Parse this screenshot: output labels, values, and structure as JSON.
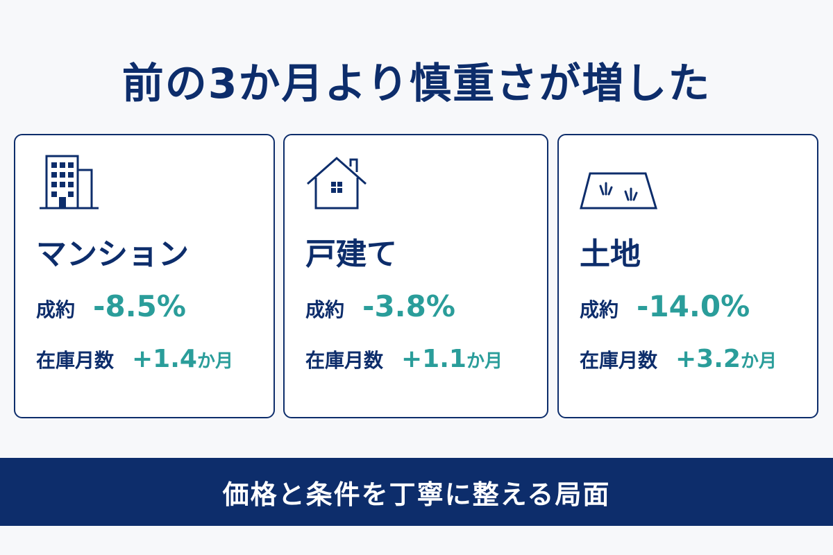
{
  "header": {
    "title": "前の3か月より慎重さが増した"
  },
  "cards": [
    {
      "name": "マンション",
      "contract_label": "成約",
      "contract_value": "-8.5%",
      "inventory_label": "在庫月数",
      "inventory_value": "+1.4",
      "inventory_unit": "か月"
    },
    {
      "name": "戸建て",
      "contract_label": "成約",
      "contract_value": "-3.8%",
      "inventory_label": "在庫月数",
      "inventory_value": "+1.1",
      "inventory_unit": "か月"
    },
    {
      "name": "土地",
      "contract_label": "成約",
      "contract_value": "-14.0%",
      "inventory_label": "在庫月数",
      "inventory_value": "+3.2",
      "inventory_unit": "か月"
    }
  ],
  "footer": {
    "text": "価格と条件を丁寧に整える局面"
  }
}
